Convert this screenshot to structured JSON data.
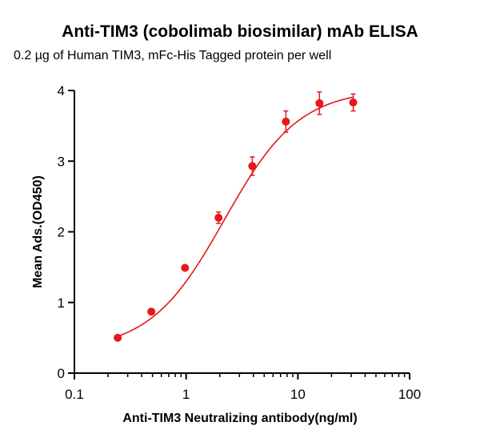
{
  "chart_data": {
    "type": "scatter",
    "title": "Anti-TIM3 (cobolimab biosimilar) mAb ELISA",
    "subtitle": "0.2 µg of Human TIM3, mFc-His Tagged protein per well",
    "xlabel": "Anti-TIM3 Neutralizing antibody(ng/ml)",
    "ylabel": "Mean Ads.(OD450)",
    "xscale": "log",
    "xlim": [
      0.1,
      100
    ],
    "ylim": [
      0,
      4
    ],
    "xticks": [
      "0.1",
      "1",
      "10",
      "100"
    ],
    "yticks": [
      "0",
      "1",
      "2",
      "3",
      "4"
    ],
    "grid": false,
    "color": "#e8161b",
    "series": [
      {
        "x": [
          0.244,
          0.488,
          0.977,
          1.95,
          3.91,
          7.81,
          15.6,
          31.3
        ],
        "y": [
          0.5,
          0.87,
          1.49,
          2.2,
          2.93,
          3.56,
          3.82,
          3.83
        ],
        "err": [
          0.02,
          0.03,
          0.03,
          0.08,
          0.13,
          0.15,
          0.16,
          0.12
        ]
      }
    ],
    "fit": {
      "type": "4PL",
      "bottom": 0.32,
      "top": 4.02,
      "ec50": 2.2,
      "hill": 1.3
    }
  }
}
